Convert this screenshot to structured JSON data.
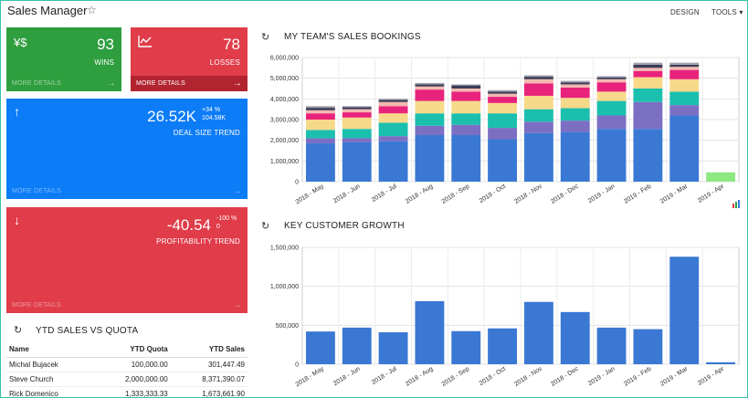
{
  "header": {
    "title": "Sales Manager",
    "star_icon": "star-icon",
    "design_label": "DESIGN",
    "tools_label": "TOOLS"
  },
  "tiles": {
    "wins": {
      "value": "93",
      "label": "WINS",
      "more": "MORE DETAILS",
      "color": "#2e9e3e",
      "icon": "dollar-hand-icon"
    },
    "losses": {
      "value": "78",
      "label": "LOSSES",
      "more": "MORE DETAILS",
      "color": "#e03c4a",
      "icon": "chart-line-icon"
    },
    "deal_size": {
      "value": "26.52K",
      "delta_pct": "+34 %",
      "delta_abs": "104.58K",
      "label": "DEAL SIZE TREND",
      "more": "MORE DETAILS",
      "color": "#0d7cf7",
      "icon": "arrow-up-icon"
    },
    "profitability": {
      "value": "-40.54",
      "delta_pct": "-100 %",
      "delta_abs": "0",
      "label": "PROFITABILITY TREND",
      "more": "MORE DETAILS",
      "color": "#e03c4a",
      "icon": "arrow-down-icon"
    }
  },
  "ytd": {
    "title": "YTD SALES VS QUOTA",
    "columns": [
      "Name",
      "YTD Quota",
      "YTD Sales"
    ],
    "rows": [
      [
        "Michal Bujacek",
        "100,000.00",
        "301,447.49"
      ],
      [
        "Steve Church",
        "2,000,000.00",
        "8,371,390.07"
      ],
      [
        "Rick Domenico",
        "1,333,333.33",
        "1,673,661.90"
      ]
    ]
  },
  "bookings": {
    "title": "MY TEAM'S SALES BOOKINGS"
  },
  "growth": {
    "title": "KEY CUSTOMER GROWTH"
  },
  "chart_data": [
    {
      "type": "bar",
      "stacked": true,
      "title": "MY TEAM'S SALES BOOKINGS",
      "categories": [
        "2018 - May",
        "2018 - Jun",
        "2018 - Jul",
        "2018 - Aug",
        "2018 - Sep",
        "2018 - Oct",
        "2018 - Nov",
        "2018 - Dec",
        "2019 - Jan",
        "2019 - Feb",
        "2019 - Mar",
        "2019 - Apr"
      ],
      "ylim": [
        0,
        6000000
      ],
      "yticks": [
        "0",
        "1,000,000",
        "2,000,000",
        "3,000,000",
        "4,000,000",
        "5,000,000",
        "6,000,000"
      ],
      "grid": true,
      "series": [
        {
          "color": "#3a78d4",
          "values": [
            1850000,
            1900000,
            1950000,
            2250000,
            2250000,
            2050000,
            2350000,
            2400000,
            2550000,
            2550000,
            3200000,
            0
          ]
        },
        {
          "color": "#7b6fc4",
          "values": [
            250000,
            200000,
            250000,
            450000,
            500000,
            550000,
            550000,
            550000,
            650000,
            1300000,
            500000,
            0
          ]
        },
        {
          "color": "#1bbfae",
          "values": [
            400000,
            450000,
            650000,
            600000,
            550000,
            700000,
            600000,
            600000,
            700000,
            650000,
            650000,
            0
          ]
        },
        {
          "color": "#f7d98a",
          "values": [
            500000,
            550000,
            450000,
            600000,
            600000,
            500000,
            650000,
            500000,
            450000,
            550000,
            600000,
            0
          ]
        },
        {
          "color": "#e8237c",
          "values": [
            300000,
            250000,
            350000,
            550000,
            450000,
            300000,
            600000,
            500000,
            450000,
            300000,
            450000,
            0
          ]
        },
        {
          "color": "#f4b8b0",
          "values": [
            150000,
            150000,
            200000,
            150000,
            150000,
            150000,
            200000,
            150000,
            150000,
            150000,
            150000,
            0
          ]
        },
        {
          "color": "#3d3d55",
          "values": [
            120000,
            100000,
            100000,
            100000,
            150000,
            100000,
            120000,
            100000,
            80000,
            150000,
            100000,
            0
          ]
        },
        {
          "color": "#a0a0b0",
          "values": [
            80000,
            50000,
            50000,
            70000,
            50000,
            70000,
            70000,
            70000,
            70000,
            100000,
            100000,
            0
          ]
        },
        {
          "color": "#8ee882",
          "values": [
            0,
            0,
            0,
            0,
            0,
            0,
            0,
            0,
            0,
            0,
            0,
            450000
          ]
        }
      ]
    },
    {
      "type": "bar",
      "title": "KEY CUSTOMER GROWTH",
      "categories": [
        "2018 - May",
        "2018 - Jun",
        "2018 - Jul",
        "2018 - Aug",
        "2018 - Sep",
        "2018 - Oct",
        "2018 - Nov",
        "2018 - Dec",
        "2019 - Jan",
        "2019 - Feb",
        "2019 - Mar",
        "2019 - Apr"
      ],
      "values": [
        420000,
        470000,
        410000,
        810000,
        425000,
        460000,
        800000,
        670000,
        470000,
        450000,
        1380000,
        25000
      ],
      "ylim": [
        0,
        1500000
      ],
      "yticks": [
        "0",
        "500,000",
        "1,000,000",
        "1,500,000"
      ],
      "grid": true,
      "color": "#3a78d4"
    }
  ]
}
